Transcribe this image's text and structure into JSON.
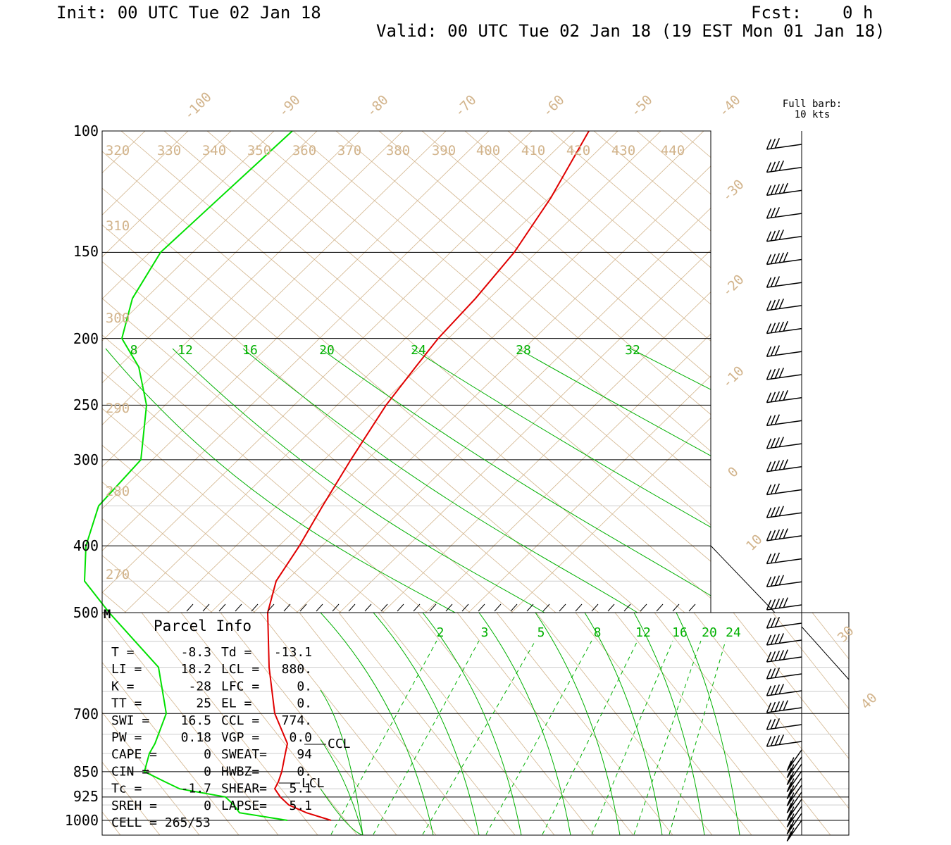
{
  "header": {
    "init": "Init: 00 UTC Tue 02 Jan 18",
    "fcst": "Fcst:    0 h",
    "valid": "Valid: 00 UTC Tue 02 Jan 18 (19 EST Mon 01 Jan 18)"
  },
  "wind_legend": {
    "line1": "Full barb:",
    "line2": "10 kts"
  },
  "colors": {
    "temperature": "#e00000",
    "dewpoint": "#00e000",
    "mixing_ratio": "#00b000",
    "background_lines": "#d2b48c",
    "isobars": "#000000"
  },
  "chart_data": {
    "type": "line",
    "pressure_ticks": [
      "100",
      "150",
      "200",
      "250",
      "300",
      "400",
      "500",
      "700",
      "850",
      "925",
      "1000"
    ],
    "pressure_values": [
      100,
      150,
      200,
      250,
      300,
      400,
      500,
      700,
      850,
      925,
      1000
    ],
    "isotherm_labels": [
      "-100",
      "-90",
      "-80",
      "-70",
      "-60",
      "-50",
      "-40",
      "-30",
      "-20",
      "-10",
      "0",
      "10",
      "30",
      "40"
    ],
    "theta_labels": [
      "320",
      "330",
      "340",
      "350",
      "360",
      "370",
      "380",
      "390",
      "400",
      "410",
      "420",
      "430",
      "440",
      "310",
      "300",
      "290",
      "280",
      "270"
    ],
    "mixing_ratio_labels_upper": [
      "8",
      "12",
      "16",
      "20",
      "24",
      "28",
      "32"
    ],
    "mixing_ratio_labels_lower": [
      "2",
      "3",
      "5",
      "8",
      "12",
      "16",
      "20",
      "24"
    ],
    "series": [
      {
        "name": "Temperature",
        "pressure": [
          1000,
          975,
          950,
          925,
          900,
          880,
          850,
          800,
          774,
          700,
          600,
          500,
          450,
          400,
          350,
          300,
          250,
          220,
          200,
          175,
          150,
          125,
          100
        ]
      },
      {
        "name": "Dewpoint",
        "pressure": [
          1000,
          975,
          950,
          925,
          900,
          880,
          850,
          800,
          774,
          700,
          600,
          500,
          450,
          400,
          350,
          300,
          250,
          220,
          200,
          175,
          150,
          125,
          100
        ]
      }
    ],
    "markers": [
      {
        "label": "CCL",
        "pressure": 774
      },
      {
        "label": "LCL",
        "pressure": 880
      },
      {
        "label": "M",
        "pressure": 500
      }
    ]
  },
  "parcel_info": {
    "title": "Parcel Info",
    "rows": [
      {
        "l": "T  =",
        "lv": "-8.3",
        "r": "Td =",
        "rv": "-13.1"
      },
      {
        "l": "LI =",
        "lv": "18.2",
        "r": "LCL =",
        "rv": "880."
      },
      {
        "l": "K  =",
        "lv": "-28",
        "r": "LFC =",
        "rv": "0."
      },
      {
        "l": "TT =",
        "lv": "25",
        "r": "EL  =",
        "rv": "0."
      },
      {
        "l": "SWI =",
        "lv": "16.5",
        "r": "CCL =",
        "rv": "774."
      },
      {
        "l": "PW =",
        "lv": "0.18",
        "r": "VGP =",
        "rv": "0.0"
      },
      {
        "l": "CAPE =",
        "lv": "0",
        "r": "SWEAT=",
        "rv": "94"
      },
      {
        "l": "CIN =",
        "lv": "0",
        "r": "HWBZ=",
        "rv": "0."
      },
      {
        "l": "Tc =",
        "lv": "-1.7",
        "r": "SHEAR=",
        "rv": "5.1"
      },
      {
        "l": "SREH =",
        "lv": "0",
        "r": "LAPSE=",
        "rv": "5.1"
      },
      {
        "l": "CELL = 265/53",
        "lv": "",
        "r": "",
        "rv": ""
      }
    ]
  }
}
